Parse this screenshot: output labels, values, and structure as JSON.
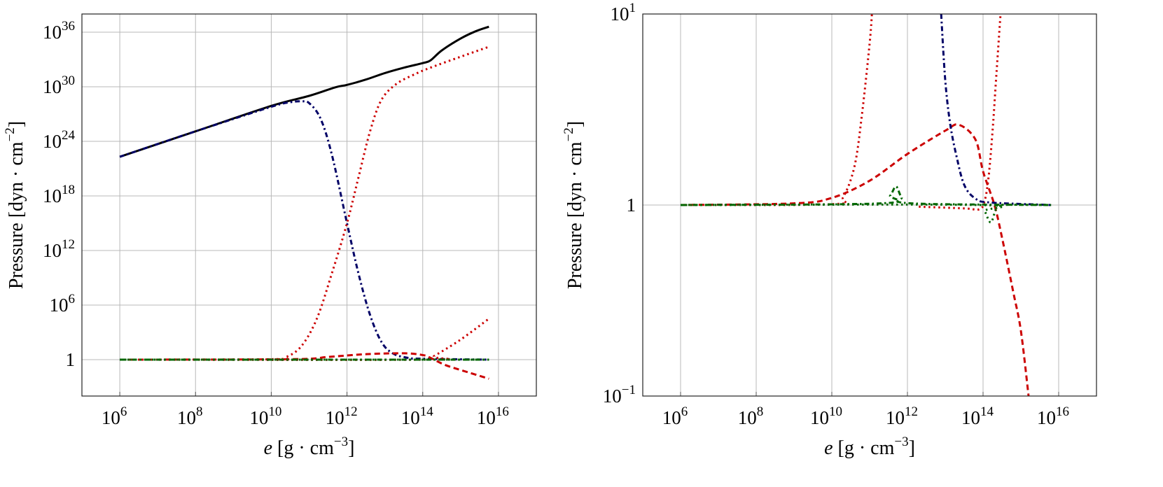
{
  "colors": {
    "black": "#000000",
    "red": "#cc0000",
    "blue": "#000066",
    "green": "#006600",
    "grid": "#b8b8b8"
  },
  "chart_data": [
    {
      "type": "line",
      "xscale": "log",
      "yscale": "log",
      "xlim": [
        100000.0,
        1e+17
      ],
      "ylim": [
        0.0001,
        1e+38
      ],
      "grid": true,
      "xlabel": {
        "var": "e",
        "unit": "[g · cm",
        "exp": "−3",
        "close": "]"
      },
      "ylabel": {
        "text": "Pressure [dyn · cm",
        "exp": "−2",
        "close": "]"
      },
      "xticks": [
        {
          "v": 1000000.0,
          "base": "10",
          "exp": "6"
        },
        {
          "v": 100000000.0,
          "base": "10",
          "exp": "8"
        },
        {
          "v": 10000000000.0,
          "base": "10",
          "exp": "10"
        },
        {
          "v": 1000000000000.0,
          "base": "10",
          "exp": "12"
        },
        {
          "v": 100000000000000.0,
          "base": "10",
          "exp": "14"
        },
        {
          "v": 1e+16,
          "base": "10",
          "exp": "16"
        }
      ],
      "yticks": [
        {
          "v": 1,
          "base": "1",
          "exp": ""
        },
        {
          "v": 1000000.0,
          "base": "10",
          "exp": "6"
        },
        {
          "v": 1000000000000.0,
          "base": "10",
          "exp": "12"
        },
        {
          "v": 1e+18,
          "base": "10",
          "exp": "18"
        },
        {
          "v": 1e+24,
          "base": "10",
          "exp": "24"
        },
        {
          "v": 1e+30,
          "base": "10",
          "exp": "30"
        },
        {
          "v": 1e+36,
          "base": "10",
          "exp": "36"
        }
      ],
      "series": [
        {
          "color": "black",
          "style": "solid",
          "x": [
            1000000.0,
            100000000.0,
            10000000000.0,
            100000000000.0,
            500000000000.0,
            1000000000000.0,
            3200000000000.0,
            10000000000000.0,
            32000000000000.0,
            100000000000000.0,
            160000000000000.0,
            320000000000000.0,
            1000000000000000.0,
            2500000000000000.0,
            5600000000000000.0
          ],
          "y": [
            2e+22,
            1.26e+25,
            7.9e+27,
            1e+29,
            8.9e+29,
            1.6e+30,
            6.3e+30,
            3.2e+31,
            1.26e+32,
            4e+32,
            7.9e+32,
            1e+34,
            2e+35,
            1.26e+36,
            4e+36
          ]
        },
        {
          "color": "blue",
          "style": "dashdot",
          "x": [
            1000000.0,
            100000000.0,
            10000000000.0,
            32000000000.0,
            63000000000.0,
            100000000000.0,
            200000000000.0,
            400000000000.0,
            1000000000000.0,
            2000000000000.0,
            4000000000000.0,
            8000000000000.0,
            16000000000000.0,
            40000000000000.0,
            100000000000000.0,
            5600000000000000.0
          ],
          "y": [
            2e+22,
            1.26e+25,
            6.3e+27,
            2e+28,
            2.5e+28,
            1.6e+28,
            3.2e+26,
            3.2e+22,
            1000000000000000.0,
            3200000000.0,
            100000.0,
            100,
            5,
            1.6,
            1.26,
            1
          ]
        },
        {
          "color": "red",
          "style": "dotted",
          "x": [
            1000000.0,
            10000000000.0,
            25000000000.0,
            63000000000.0,
            160000000000.0,
            400000000000.0,
            1000000000000.0,
            2000000000000.0,
            4000000000000.0,
            8000000000000.0,
            20000000000000.0,
            63000000000000.0,
            160000000000000.0,
            1000000000000000.0,
            5600000000000000.0
          ],
          "y": [
            1,
            1.12,
            2,
            32,
            32000.0,
            3200000000.0,
            1000000000000000.0,
            1e+20,
            1e+25,
            3.2e+28,
            2e+30,
            2.5e+31,
            1.26e+32,
            2e+33,
            2.5e+34
          ]
        },
        {
          "color": "red",
          "style": "dotted",
          "x": [
            1000000.0,
            126000000000000.0,
            200000000000000.0,
            1000000000000000.0,
            5600000000000000.0
          ],
          "y": [
            1,
            1,
            2.5,
            160,
            32000.0
          ]
        },
        {
          "color": "red",
          "style": "dashed",
          "x": [
            1000000.0,
            32000000000.0,
            320000000000.0,
            3200000000000.0,
            32000000000000.0,
            100000000000000.0,
            160000000000000.0,
            400000000000000.0,
            1600000000000000.0,
            5600000000000000.0
          ],
          "y": [
            1,
            1.12,
            2,
            4,
            5,
            3.2,
            1.6,
            0.25,
            0.04,
            0.008
          ]
        },
        {
          "color": "green",
          "style": "dashdot",
          "x": [
            1000000.0,
            5600000000000000.0
          ],
          "y": [
            1,
            1
          ]
        },
        {
          "color": "green",
          "style": "dotted",
          "x": [
            1000000.0,
            5600000000000000.0
          ],
          "y": [
            1,
            1
          ]
        }
      ]
    },
    {
      "type": "line",
      "xscale": "log",
      "yscale": "log",
      "xlim": [
        100000.0,
        1e+17
      ],
      "ylim": [
        0.1,
        10
      ],
      "grid": true,
      "xlabel": {
        "var": "e",
        "unit": "[g · cm",
        "exp": "−3",
        "close": "]"
      },
      "ylabel": {
        "text": "Pressure [dyn · cm",
        "exp": "−2",
        "close": "]"
      },
      "xticks": [
        {
          "v": 1000000.0,
          "base": "10",
          "exp": "6"
        },
        {
          "v": 100000000.0,
          "base": "10",
          "exp": "8"
        },
        {
          "v": 10000000000.0,
          "base": "10",
          "exp": "10"
        },
        {
          "v": 1000000000000.0,
          "base": "10",
          "exp": "12"
        },
        {
          "v": 100000000000000.0,
          "base": "10",
          "exp": "14"
        },
        {
          "v": 1e+16,
          "base": "10",
          "exp": "16"
        }
      ],
      "yticks": [
        {
          "v": 0.1,
          "base": "10",
          "exp": "−1"
        },
        {
          "v": 1,
          "base": "1",
          "exp": ""
        },
        {
          "v": 10,
          "base": "10",
          "exp": "1"
        }
      ],
      "series": [
        {
          "color": "red",
          "style": "dashed",
          "x": [
            1000000.0,
            1000000000.0,
            10000000000.0,
            100000000000.0,
            1000000000000.0,
            10000000000000.0,
            23000000000000.0,
            63000000000000.0,
            100000000000000.0,
            200000000000000.0,
            320000000000000.0,
            630000000000000.0,
            1000000000000000.0,
            1600000000000000.0
          ],
          "y": [
            1,
            1.02,
            1.09,
            1.34,
            1.85,
            2.45,
            2.63,
            2.2,
            1.5,
            1.0,
            0.67,
            0.35,
            0.22,
            0.1
          ]
        },
        {
          "color": "red",
          "style": "dotted",
          "x": [
            1000000.0,
            10000000000.0,
            20000000000.0,
            40000000000.0,
            63000000000.0,
            100000000000.0,
            115000000000.0
          ],
          "y": [
            1,
            1.01,
            1.1,
            1.6,
            3,
            7,
            10
          ]
        },
        {
          "color": "red",
          "style": "dotted",
          "x": [
            2000000000000.0,
            32000000000000.0,
            80000000000000.0,
            110000000000000.0,
            140000000000000.0,
            180000000000000.0,
            220000000000000.0,
            290000000000000.0
          ],
          "y": [
            0.98,
            0.96,
            0.95,
            1.05,
            1.4,
            2.5,
            4.5,
            10
          ]
        },
        {
          "color": "blue",
          "style": "dashdot",
          "x": [
            7800000000000.0,
            10000000000000.0,
            13500000000000.0,
            20000000000000.0,
            32000000000000.0,
            63000000000000.0,
            160000000000000.0,
            6300000000000000.0
          ],
          "y": [
            10,
            4.5,
            2.66,
            1.79,
            1.27,
            1.08,
            1.03,
            1
          ]
        },
        {
          "color": "green",
          "style": "dashdot",
          "x": [
            1000000.0,
            200000000000.0,
            350000000000.0,
            500000000000.0,
            700000000000.0,
            1260000000000.0,
            6300000000000000.0
          ],
          "y": [
            1,
            1.02,
            1.12,
            1.25,
            1.1,
            1.02,
            1
          ]
        },
        {
          "color": "green",
          "style": "dotted",
          "x": [
            1000000.0,
            80000000000000.0,
            110000000000000.0,
            160000000000000.0,
            220000000000000.0,
            320000000000000.0,
            6300000000000000.0
          ],
          "y": [
            1,
            1,
            0.93,
            0.81,
            0.95,
            1,
            1
          ]
        }
      ]
    }
  ]
}
